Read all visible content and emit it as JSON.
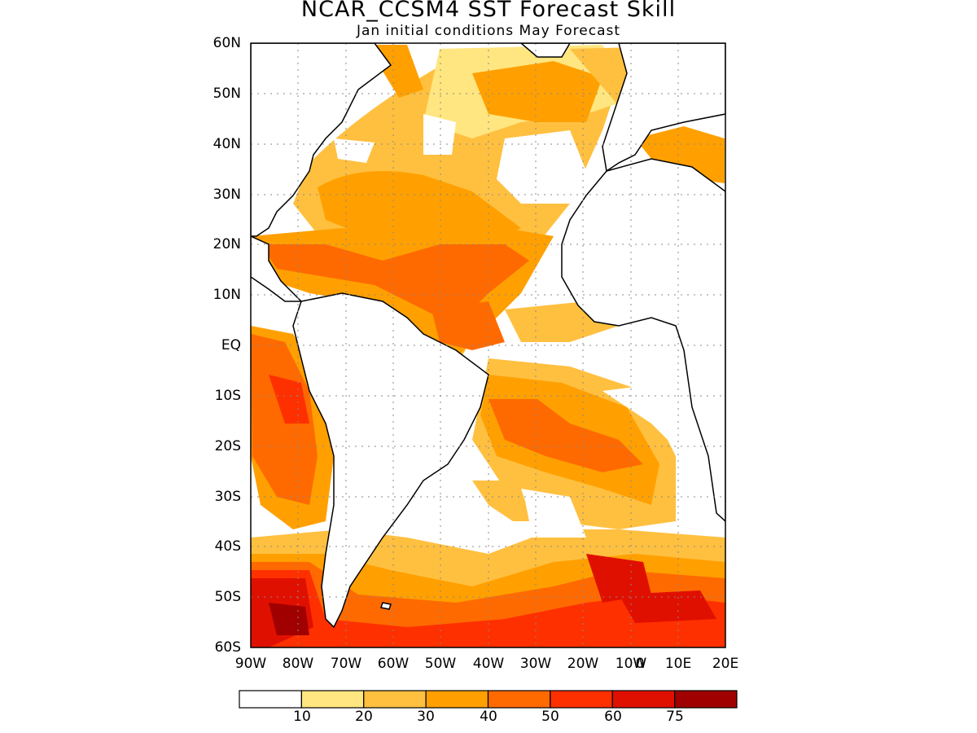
{
  "title": "NCAR_CCSM4 SST Forecast Skill",
  "subtitle": "Jan initial conditions   May Forecast",
  "lat_labels": [
    "60N",
    "50N",
    "40N",
    "30N",
    "20N",
    "10N",
    "EQ",
    "10S",
    "20S",
    "30S",
    "40S",
    "50S",
    "60S"
  ],
  "lon_labels": [
    "90W",
    "80W",
    "70W",
    "60W",
    "50W",
    "40W",
    "30W",
    "20W",
    "10W",
    "0",
    "10E",
    "20E"
  ],
  "colorbar": {
    "colors": [
      "#ffffff",
      "#ffe680",
      "#ffc040",
      "#ffa000",
      "#ff6a00",
      "#ff3000",
      "#e01000",
      "#a00000"
    ],
    "labels": [
      "10",
      "20",
      "30",
      "40",
      "50",
      "60",
      "75"
    ]
  }
}
